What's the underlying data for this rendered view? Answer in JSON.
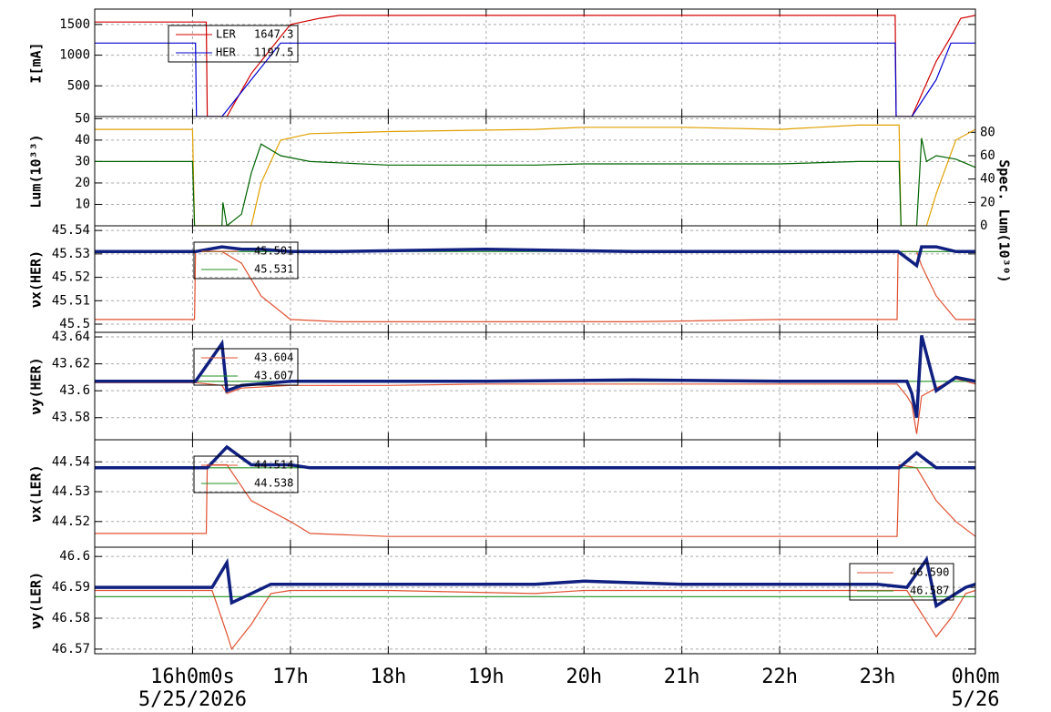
{
  "chart_data": [
    {
      "type": "line",
      "y_label": "I[mA]",
      "ylim": [
        0,
        1750
      ],
      "yticks": [
        500,
        1000,
        1500
      ],
      "grid": true,
      "legend": "upper left",
      "x": [
        15,
        16.03,
        16.04,
        16.14,
        16.15,
        16.3,
        16.35,
        16.6,
        16.9,
        17.0,
        17.3,
        17.5,
        23.18,
        23.19,
        23.35,
        23.6,
        23.75,
        23.85,
        24
      ],
      "series": [
        {
          "name": "LER",
          "color": "#d00000",
          "style": "line",
          "legend_label": "1647.3",
          "values": [
            1540,
            1540,
            1540,
            1540,
            0,
            0,
            0,
            700,
            1300,
            1500,
            1600,
            1647,
            1647,
            0,
            0,
            900,
            1300,
            1600,
            1647
          ]
        },
        {
          "name": "HER",
          "color": "#0000d0",
          "style": "line",
          "legend_label": "1197.5",
          "values": [
            1197,
            1197,
            0,
            0,
            0,
            0,
            100,
            600,
            1197,
            1197,
            1197,
            1197,
            1197,
            0,
            0,
            600,
            1197,
            1197,
            1197
          ]
        }
      ]
    },
    {
      "type": "line",
      "y_label": "Lum(10³³)",
      "ylim": [
        0,
        51
      ],
      "yticks": [
        10,
        20,
        30,
        40,
        50
      ],
      "y2_label": "Spec. Lum(10³⁰)",
      "y2lim": [
        0,
        93.5
      ],
      "y2ticks": [
        0,
        20,
        40,
        60,
        80
      ],
      "grid": true,
      "x": [
        15,
        16.0,
        16.02,
        16.3,
        16.31,
        16.35,
        16.5,
        16.6,
        16.7,
        16.9,
        17.2,
        18,
        19.5,
        20,
        21,
        22,
        22.8,
        23.22,
        23.24,
        23.4,
        23.45,
        23.5,
        23.6,
        23.8,
        24
      ],
      "series": [
        {
          "color": "#e0a000",
          "style": "line",
          "values": [
            45,
            45,
            0,
            0,
            0,
            0,
            0,
            0,
            20,
            40,
            43,
            44,
            45,
            46,
            46,
            45,
            47,
            47,
            0,
            0,
            0,
            0,
            15,
            40,
            45
          ]
        },
        {
          "color": "#006400",
          "style": "line",
          "axis": "y2",
          "values": [
            55,
            55,
            0,
            0,
            20,
            0,
            10,
            45,
            70,
            60,
            55,
            52,
            52,
            53,
            53,
            53,
            55,
            55,
            0,
            0,
            75,
            55,
            60,
            57,
            50
          ]
        }
      ]
    },
    {
      "type": "line",
      "y_label": "νx(HER)",
      "ylim": [
        45.4965,
        45.542
      ],
      "yticks": [
        45.5,
        45.51,
        45.52,
        45.53,
        45.54
      ],
      "grid": true,
      "legend": "upper left",
      "x": [
        15,
        16.02,
        16.03,
        16.3,
        16.5,
        16.7,
        17.0,
        17.5,
        19,
        20.5,
        22,
        23.2,
        23.21,
        23.4,
        23.45,
        23.6,
        23.8,
        24
      ],
      "series": [
        {
          "color": "#e05030",
          "style": "line",
          "legend_label": "45.501",
          "values": [
            45.502,
            45.502,
            45.531,
            45.531,
            45.526,
            45.512,
            45.502,
            45.501,
            45.501,
            45.501,
            45.502,
            45.502,
            45.531,
            45.531,
            45.525,
            45.512,
            45.502,
            45.502
          ]
        },
        {
          "color": "#209020",
          "style": "line",
          "legend_label": "45.531",
          "values": [
            45.531,
            45.531,
            45.531,
            45.531,
            45.531,
            45.531,
            45.531,
            45.531,
            45.531,
            45.531,
            45.531,
            45.531,
            45.531,
            45.531,
            45.531,
            45.531,
            45.531,
            45.531
          ]
        },
        {
          "color": "#102080",
          "style": "markers",
          "values": [
            45.531,
            45.531,
            45.531,
            45.533,
            45.532,
            45.532,
            45.531,
            45.531,
            45.532,
            45.531,
            45.531,
            45.531,
            45.531,
            45.525,
            45.533,
            45.533,
            45.531,
            45.531
          ]
        }
      ]
    },
    {
      "type": "line",
      "y_label": "νy(HER)",
      "ylim": [
        43.5636,
        43.6434
      ],
      "yticks": [
        43.58,
        43.6,
        43.62,
        43.64
      ],
      "grid": true,
      "legend": "upper left",
      "x": [
        15,
        16.02,
        16.03,
        16.3,
        16.35,
        16.5,
        17,
        18,
        19,
        20.5,
        22,
        23.2,
        23.3,
        23.35,
        23.4,
        23.45,
        23.6,
        23.8,
        24
      ],
      "series": [
        {
          "color": "#e05030",
          "style": "line",
          "legend_label": "43.604",
          "values": [
            43.606,
            43.606,
            43.606,
            43.604,
            43.598,
            43.602,
            43.604,
            43.604,
            43.605,
            43.605,
            43.605,
            43.605,
            43.596,
            43.59,
            43.568,
            43.596,
            43.602,
            43.609,
            43.605
          ]
        },
        {
          "color": "#209020",
          "style": "line",
          "legend_label": "43.607",
          "values": [
            43.607,
            43.607,
            43.607,
            43.607,
            43.607,
            43.607,
            43.607,
            43.607,
            43.607,
            43.607,
            43.607,
            43.607,
            43.607,
            43.607,
            43.607,
            43.607,
            43.607,
            43.607,
            43.607
          ]
        },
        {
          "color": "#102080",
          "style": "markers",
          "values": [
            43.607,
            43.607,
            43.607,
            43.635,
            43.6,
            43.604,
            43.607,
            43.607,
            43.607,
            43.608,
            43.607,
            43.607,
            43.607,
            43.598,
            43.58,
            43.641,
            43.6,
            43.61,
            43.607
          ]
        }
      ]
    },
    {
      "type": "line",
      "y_label": "νx(LER)",
      "ylim": [
        44.5114,
        44.5474
      ],
      "yticks": [
        44.52,
        44.53,
        44.54
      ],
      "grid": true,
      "legend": "upper left",
      "x": [
        15,
        16.14,
        16.15,
        16.35,
        16.6,
        17.0,
        17.2,
        18,
        20,
        22,
        23.2,
        23.22,
        23.4,
        23.6,
        23.8,
        24
      ],
      "series": [
        {
          "color": "#e05030",
          "style": "line",
          "legend_label": "44.514",
          "values": [
            44.516,
            44.516,
            44.539,
            44.539,
            44.527,
            44.52,
            44.516,
            44.515,
            44.515,
            44.515,
            44.515,
            44.539,
            44.538,
            44.527,
            44.52,
            44.515
          ]
        },
        {
          "color": "#209020",
          "style": "line",
          "legend_label": "44.538",
          "values": [
            44.538,
            44.538,
            44.538,
            44.538,
            44.538,
            44.538,
            44.538,
            44.538,
            44.538,
            44.538,
            44.538,
            44.538,
            44.538,
            44.538,
            44.538,
            44.538
          ]
        },
        {
          "color": "#102080",
          "style": "markers",
          "values": [
            44.538,
            44.538,
            44.538,
            44.545,
            44.539,
            44.539,
            44.538,
            44.538,
            44.538,
            44.538,
            44.538,
            44.538,
            44.543,
            44.538,
            44.538,
            44.538
          ]
        }
      ]
    },
    {
      "type": "line",
      "y_label": "νy(LER)",
      "ylim": [
        46.5685,
        46.603
      ],
      "yticks": [
        46.57,
        46.58,
        46.59,
        46.6
      ],
      "grid": true,
      "legend": "upper right",
      "xlim": [
        15,
        24
      ],
      "xticks": [
        {
          "value": 16,
          "label": "16h0m0s"
        },
        {
          "value": 17,
          "label": "17h"
        },
        {
          "value": 18,
          "label": "18h"
        },
        {
          "value": 19,
          "label": "19h"
        },
        {
          "value": 20,
          "label": "20h"
        },
        {
          "value": 21,
          "label": "21h"
        },
        {
          "value": 22,
          "label": "22h"
        },
        {
          "value": 23,
          "label": "23h"
        },
        {
          "value": 24,
          "label": "0h0m"
        }
      ],
      "x_dates": [
        {
          "value": 16,
          "label": "5/25/2026"
        },
        {
          "value": 24,
          "label": "5/26"
        }
      ],
      "x": [
        15,
        16.0,
        16.2,
        16.35,
        16.4,
        16.6,
        16.8,
        17,
        18,
        19.5,
        20,
        21,
        22,
        23.0,
        23.3,
        23.5,
        23.6,
        23.75,
        23.9,
        24
      ],
      "series": [
        {
          "color": "#e05030",
          "style": "line",
          "legend_label": "46.590",
          "values": [
            46.589,
            46.589,
            46.589,
            46.575,
            46.57,
            46.578,
            46.588,
            46.589,
            46.589,
            46.588,
            46.589,
            46.589,
            46.589,
            46.589,
            46.589,
            46.579,
            46.574,
            46.58,
            46.588,
            46.589
          ]
        },
        {
          "color": "#209020",
          "style": "line",
          "legend_label": "46.587",
          "values": [
            46.587,
            46.587,
            46.587,
            46.587,
            46.587,
            46.587,
            46.587,
            46.587,
            46.587,
            46.587,
            46.587,
            46.587,
            46.587,
            46.587,
            46.587,
            46.587,
            46.587,
            46.587,
            46.587,
            46.587
          ]
        },
        {
          "color": "#102080",
          "style": "markers",
          "values": [
            46.59,
            46.59,
            46.59,
            46.598,
            46.585,
            46.588,
            46.591,
            46.591,
            46.591,
            46.591,
            46.592,
            46.591,
            46.591,
            46.591,
            46.59,
            46.599,
            46.584,
            46.587,
            46.59,
            46.591
          ]
        }
      ]
    }
  ]
}
